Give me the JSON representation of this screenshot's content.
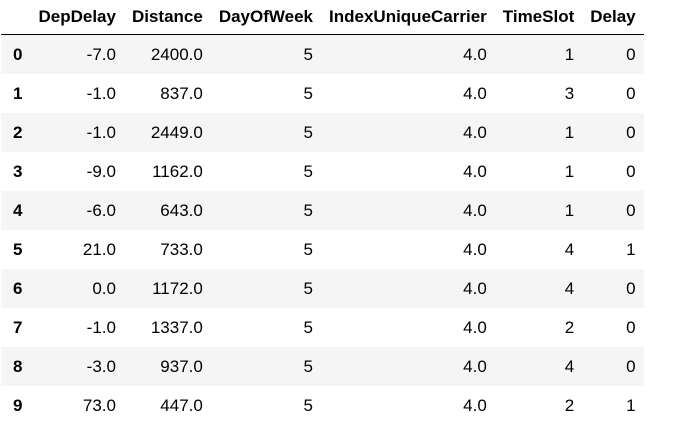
{
  "table": {
    "index_header": "",
    "columns": [
      "DepDelay",
      "Distance",
      "DayOfWeek",
      "IndexUniqueCarrier",
      "TimeSlot",
      "Delay"
    ],
    "rows": [
      {
        "index": "0",
        "cells": [
          "-7.0",
          "2400.0",
          "5",
          "4.0",
          "1",
          "0"
        ]
      },
      {
        "index": "1",
        "cells": [
          "-1.0",
          "837.0",
          "5",
          "4.0",
          "3",
          "0"
        ]
      },
      {
        "index": "2",
        "cells": [
          "-1.0",
          "2449.0",
          "5",
          "4.0",
          "1",
          "0"
        ]
      },
      {
        "index": "3",
        "cells": [
          "-9.0",
          "1162.0",
          "5",
          "4.0",
          "1",
          "0"
        ]
      },
      {
        "index": "4",
        "cells": [
          "-6.0",
          "643.0",
          "5",
          "4.0",
          "1",
          "0"
        ]
      },
      {
        "index": "5",
        "cells": [
          "21.0",
          "733.0",
          "5",
          "4.0",
          "4",
          "1"
        ]
      },
      {
        "index": "6",
        "cells": [
          "0.0",
          "1172.0",
          "5",
          "4.0",
          "4",
          "0"
        ]
      },
      {
        "index": "7",
        "cells": [
          "-1.0",
          "1337.0",
          "5",
          "4.0",
          "2",
          "0"
        ]
      },
      {
        "index": "8",
        "cells": [
          "-3.0",
          "937.0",
          "5",
          "4.0",
          "4",
          "0"
        ]
      },
      {
        "index": "9",
        "cells": [
          "73.0",
          "447.0",
          "5",
          "4.0",
          "2",
          "1"
        ]
      }
    ]
  },
  "colors": {
    "stripe": "#f5f5f5",
    "background": "#ffffff",
    "text": "#000000",
    "header_rule": "#000000"
  }
}
